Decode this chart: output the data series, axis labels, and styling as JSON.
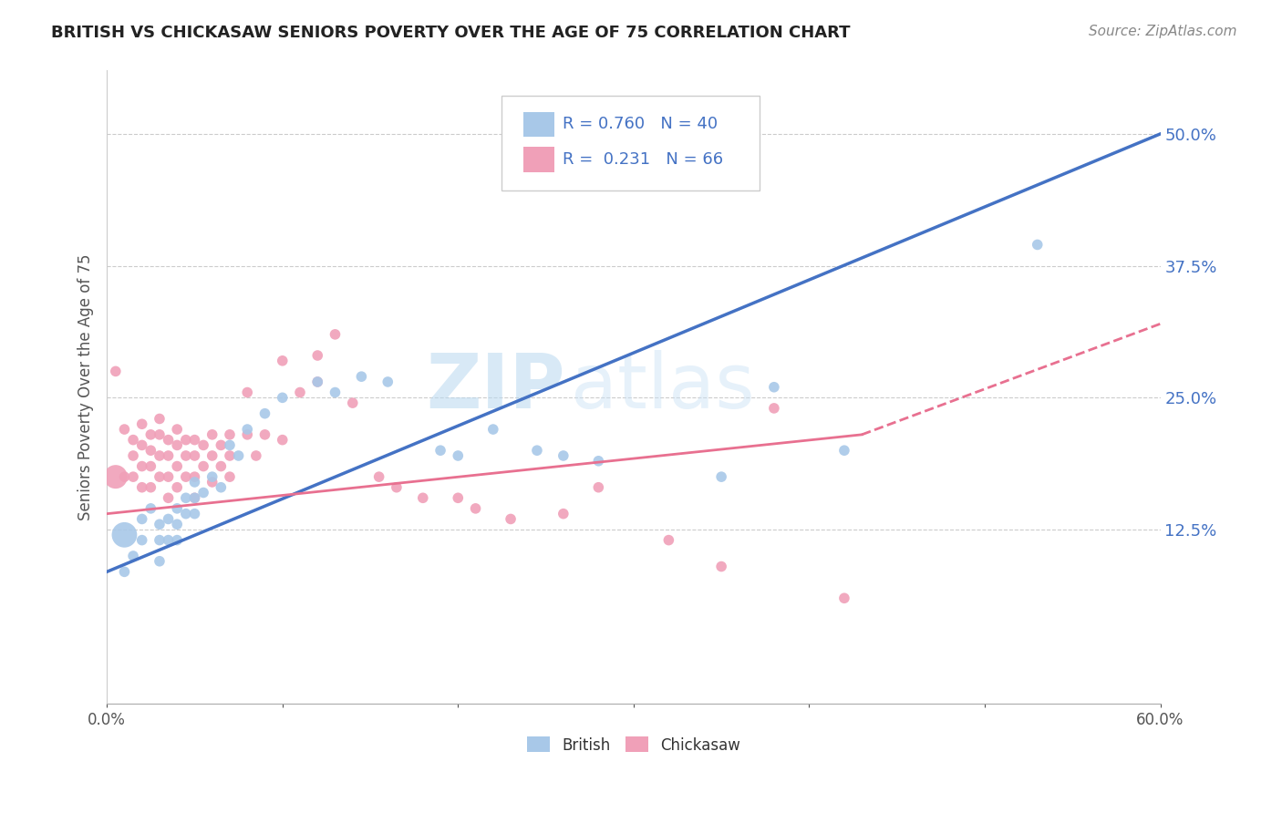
{
  "title": "BRITISH VS CHICKASAW SENIORS POVERTY OVER THE AGE OF 75 CORRELATION CHART",
  "source": "Source: ZipAtlas.com",
  "ylabel": "Seniors Poverty Over the Age of 75",
  "xlim": [
    0.0,
    0.6
  ],
  "ylim": [
    -0.04,
    0.56
  ],
  "ytick_vals": [
    0.125,
    0.25,
    0.375,
    0.5
  ],
  "ytick_labels": [
    "12.5%",
    "25.0%",
    "37.5%",
    "50.0%"
  ],
  "british_color": "#A8C8E8",
  "chickasaw_color": "#F0A0B8",
  "british_line_color": "#4472C4",
  "chickasaw_line_color": "#E87090",
  "R_british": 0.76,
  "N_british": 40,
  "R_chickasaw": 0.231,
  "N_chickasaw": 66,
  "watermark": "ZIPatlas",
  "background_color": "#FFFFFF",
  "legend_color_british": "#A8C8E8",
  "legend_color_chickasaw": "#F0A0B8",
  "british_line": [
    0.0,
    0.085,
    0.6,
    0.5
  ],
  "chickasaw_line": [
    0.0,
    0.14,
    0.43,
    0.215
  ],
  "chickasaw_line_ext": [
    0.43,
    0.215,
    0.6,
    0.32
  ],
  "british_scatter": [
    [
      0.01,
      0.085
    ],
    [
      0.015,
      0.1
    ],
    [
      0.02,
      0.135
    ],
    [
      0.02,
      0.115
    ],
    [
      0.025,
      0.145
    ],
    [
      0.03,
      0.13
    ],
    [
      0.03,
      0.115
    ],
    [
      0.03,
      0.095
    ],
    [
      0.035,
      0.135
    ],
    [
      0.035,
      0.115
    ],
    [
      0.04,
      0.145
    ],
    [
      0.04,
      0.13
    ],
    [
      0.04,
      0.115
    ],
    [
      0.045,
      0.155
    ],
    [
      0.045,
      0.14
    ],
    [
      0.05,
      0.17
    ],
    [
      0.05,
      0.155
    ],
    [
      0.05,
      0.14
    ],
    [
      0.055,
      0.16
    ],
    [
      0.06,
      0.175
    ],
    [
      0.065,
      0.165
    ],
    [
      0.07,
      0.205
    ],
    [
      0.075,
      0.195
    ],
    [
      0.08,
      0.22
    ],
    [
      0.09,
      0.235
    ],
    [
      0.1,
      0.25
    ],
    [
      0.12,
      0.265
    ],
    [
      0.13,
      0.255
    ],
    [
      0.145,
      0.27
    ],
    [
      0.16,
      0.265
    ],
    [
      0.19,
      0.2
    ],
    [
      0.2,
      0.195
    ],
    [
      0.22,
      0.22
    ],
    [
      0.245,
      0.2
    ],
    [
      0.26,
      0.195
    ],
    [
      0.28,
      0.19
    ],
    [
      0.35,
      0.175
    ],
    [
      0.38,
      0.26
    ],
    [
      0.42,
      0.2
    ],
    [
      0.53,
      0.395
    ]
  ],
  "british_sizes": [
    50,
    50,
    50,
    50,
    50,
    50,
    50,
    50,
    50,
    50,
    50,
    50,
    50,
    50,
    50,
    50,
    50,
    50,
    50,
    50,
    50,
    50,
    50,
    50,
    50,
    50,
    50,
    50,
    50,
    50,
    50,
    50,
    50,
    50,
    50,
    50,
    50,
    50,
    50,
    50
  ],
  "british_large": [
    [
      0.01,
      0.12
    ]
  ],
  "british_large_size": 400,
  "chickasaw_scatter": [
    [
      0.005,
      0.275
    ],
    [
      0.01,
      0.22
    ],
    [
      0.01,
      0.175
    ],
    [
      0.015,
      0.21
    ],
    [
      0.015,
      0.195
    ],
    [
      0.015,
      0.175
    ],
    [
      0.02,
      0.225
    ],
    [
      0.02,
      0.205
    ],
    [
      0.02,
      0.185
    ],
    [
      0.02,
      0.165
    ],
    [
      0.025,
      0.215
    ],
    [
      0.025,
      0.2
    ],
    [
      0.025,
      0.185
    ],
    [
      0.025,
      0.165
    ],
    [
      0.03,
      0.23
    ],
    [
      0.03,
      0.215
    ],
    [
      0.03,
      0.195
    ],
    [
      0.03,
      0.175
    ],
    [
      0.035,
      0.21
    ],
    [
      0.035,
      0.195
    ],
    [
      0.035,
      0.175
    ],
    [
      0.035,
      0.155
    ],
    [
      0.04,
      0.22
    ],
    [
      0.04,
      0.205
    ],
    [
      0.04,
      0.185
    ],
    [
      0.04,
      0.165
    ],
    [
      0.045,
      0.21
    ],
    [
      0.045,
      0.195
    ],
    [
      0.045,
      0.175
    ],
    [
      0.05,
      0.21
    ],
    [
      0.05,
      0.195
    ],
    [
      0.05,
      0.175
    ],
    [
      0.05,
      0.155
    ],
    [
      0.055,
      0.205
    ],
    [
      0.055,
      0.185
    ],
    [
      0.06,
      0.215
    ],
    [
      0.06,
      0.195
    ],
    [
      0.06,
      0.17
    ],
    [
      0.065,
      0.205
    ],
    [
      0.065,
      0.185
    ],
    [
      0.07,
      0.215
    ],
    [
      0.07,
      0.195
    ],
    [
      0.07,
      0.175
    ],
    [
      0.08,
      0.255
    ],
    [
      0.08,
      0.215
    ],
    [
      0.085,
      0.195
    ],
    [
      0.09,
      0.215
    ],
    [
      0.1,
      0.285
    ],
    [
      0.1,
      0.21
    ],
    [
      0.11,
      0.255
    ],
    [
      0.12,
      0.29
    ],
    [
      0.12,
      0.265
    ],
    [
      0.13,
      0.31
    ],
    [
      0.14,
      0.245
    ],
    [
      0.155,
      0.175
    ],
    [
      0.165,
      0.165
    ],
    [
      0.18,
      0.155
    ],
    [
      0.2,
      0.155
    ],
    [
      0.21,
      0.145
    ],
    [
      0.23,
      0.135
    ],
    [
      0.26,
      0.14
    ],
    [
      0.28,
      0.165
    ],
    [
      0.32,
      0.115
    ],
    [
      0.35,
      0.09
    ],
    [
      0.38,
      0.24
    ],
    [
      0.42,
      0.06
    ]
  ],
  "chickasaw_large": [
    [
      0.005,
      0.175
    ]
  ],
  "chickasaw_large_size": 350
}
